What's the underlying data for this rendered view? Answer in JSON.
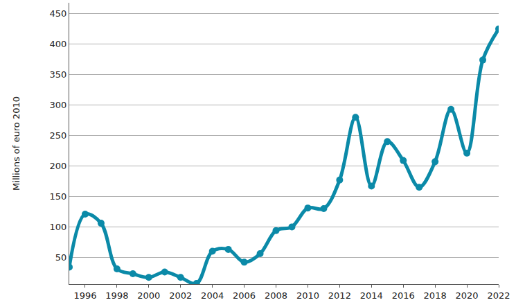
{
  "chart_data": {
    "type": "line",
    "y_label": "Millions of euro 2010",
    "x": [
      1995,
      1996,
      1997,
      1998,
      1999,
      2000,
      2001,
      2002,
      2003,
      2004,
      2005,
      2006,
      2007,
      2008,
      2009,
      2010,
      2011,
      2012,
      2013,
      2014,
      2015,
      2016,
      2017,
      2018,
      2019,
      2020,
      2021,
      2022
    ],
    "values": [
      34,
      121,
      106,
      31,
      23,
      17,
      26,
      17,
      7,
      60,
      63,
      42,
      56,
      94,
      100,
      131,
      130,
      177,
      280,
      167,
      240,
      209,
      165,
      207,
      293,
      221,
      374,
      425
    ],
    "color": "#0b8aa8",
    "marker": "circle",
    "line_style": "solid",
    "xlim": [
      1995,
      2022
    ],
    "xticks": [
      1996,
      1998,
      2000,
      2002,
      2004,
      2006,
      2008,
      2010,
      2012,
      2014,
      2016,
      2018,
      2020,
      2022
    ],
    "ylim": [
      6,
      468
    ],
    "yticks": [
      50,
      100,
      150,
      200,
      250,
      300,
      350,
      400,
      450
    ],
    "grid": true
  }
}
